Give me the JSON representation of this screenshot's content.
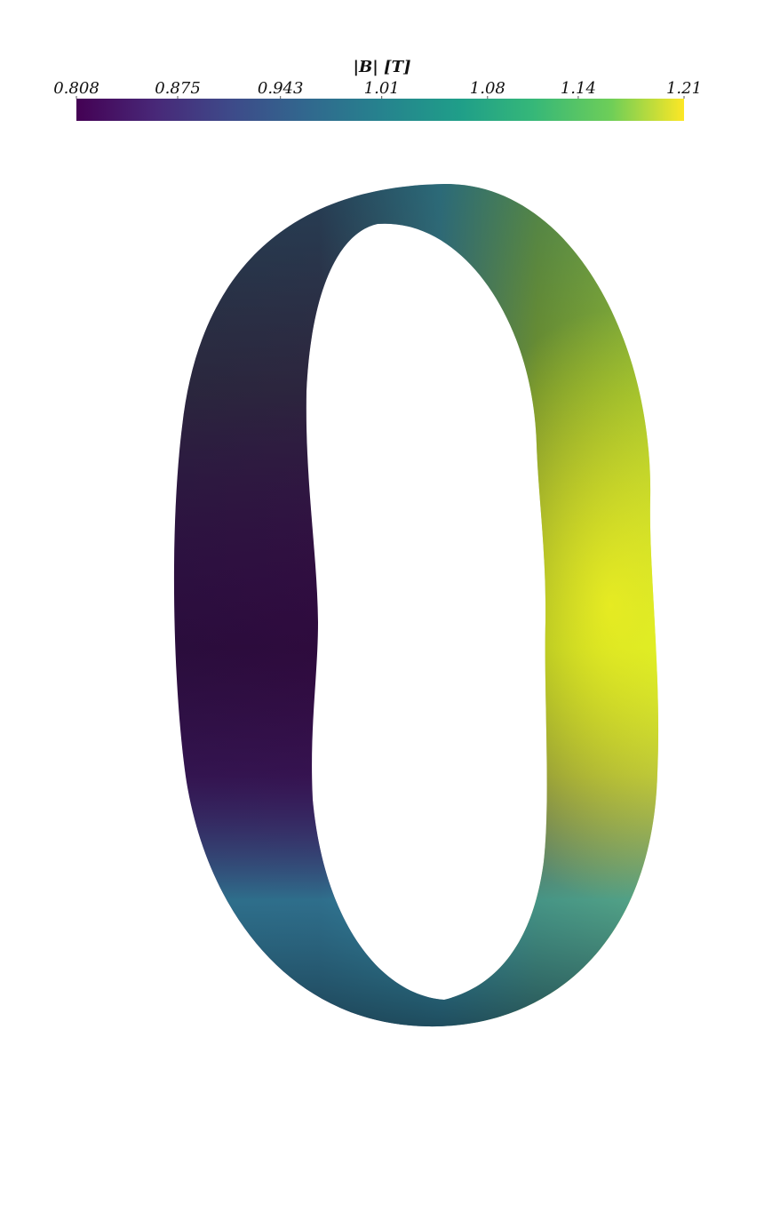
{
  "chart_data": {
    "type": "colorbar",
    "title": "|B| [T]",
    "xlim": [
      0.808,
      1.21
    ],
    "xticks": [
      0.808,
      0.875,
      0.943,
      1.01,
      1.08,
      1.14,
      1.21
    ]
  }
}
